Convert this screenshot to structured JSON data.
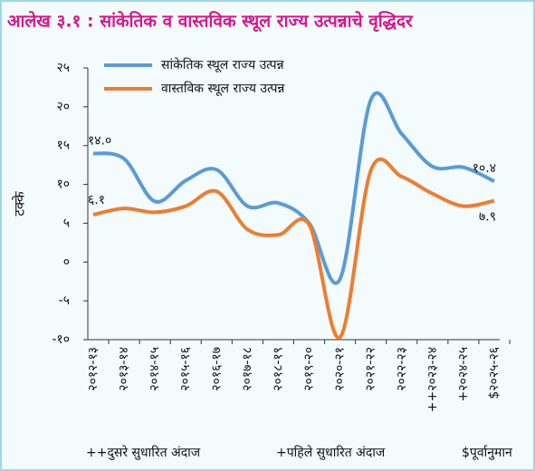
{
  "chart_data": {
    "type": "line",
    "title": "आलेख ३.१ : सांकेतिक व वास्तविक स्थूल राज्य उत्पन्नाचे वृद्धिदर",
    "y_label": "टक्के",
    "categories": [
      "२०१२-१३",
      "२०१३-१४",
      "२०१४-१५",
      "२०१५-१६",
      "२०१६-१७",
      "२०१७-१८",
      "२०१८-१९",
      "२०१९-२०",
      "२०२०-२१",
      "२०२१-२२",
      "२०२२-२३",
      "++२०२३-२४",
      "+२०२४-२५",
      "$२०२५-२६"
    ],
    "series": [
      {
        "name": "सांकेतिक स्थूल राज्य उत्पन्न",
        "color": "#5b9bd5",
        "values": [
          14.0,
          13.3,
          7.8,
          10.5,
          11.9,
          7.2,
          7.6,
          5.0,
          -2.2,
          20.9,
          16.5,
          12.3,
          12.2,
          10.4
        ],
        "value_labels": [
          "१४.०",
          null,
          null,
          null,
          null,
          null,
          null,
          null,
          null,
          null,
          null,
          null,
          null,
          "१०.४"
        ]
      },
      {
        "name": "वास्तविक स्थूल राज्य उत्पन्न",
        "color": "#ed7d31",
        "values": [
          6.1,
          6.9,
          6.4,
          7.2,
          9.1,
          4.2,
          3.5,
          4.8,
          -9.7,
          11.8,
          11.0,
          8.8,
          7.2,
          7.9
        ],
        "value_labels": [
          "६.१",
          null,
          null,
          null,
          null,
          null,
          null,
          null,
          null,
          null,
          null,
          null,
          null,
          "७.९"
        ]
      }
    ],
    "ylim": [
      -10,
      25
    ],
    "yticks": [
      {
        "value": -10,
        "label": "-१०"
      },
      {
        "value": -5,
        "label": "-५"
      },
      {
        "value": 0,
        "label": "०"
      },
      {
        "value": 5,
        "label": "५"
      },
      {
        "value": 10,
        "label": "१०"
      },
      {
        "value": 15,
        "label": "१५"
      },
      {
        "value": 20,
        "label": "२०"
      },
      {
        "value": 25,
        "label": "२५"
      }
    ],
    "legend": "top",
    "notes": [
      "++दुसरे सुधारित अंदाज",
      "+पहिले सुधारित अंदाज",
      "$पूर्वानुमान"
    ]
  }
}
